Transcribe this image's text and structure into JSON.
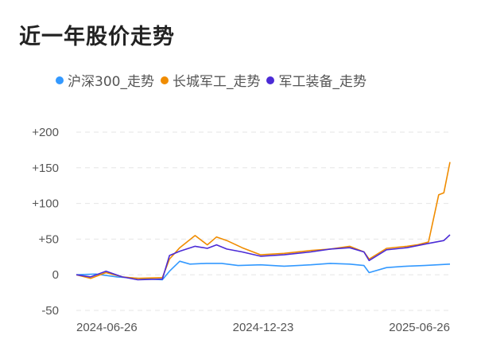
{
  "title": "近一年股价走势",
  "colors": {
    "hs300": "#3399ff",
    "ccgj": "#f08c00",
    "jgzb": "#4b2bd6",
    "grid": "#e6e6e6"
  },
  "chart_data": {
    "type": "line",
    "title": "近一年股价走势",
    "x_ticks": [
      "2024-06-26",
      "2024-12-23",
      "2025-06-26"
    ],
    "y_ticks": [
      "+200",
      "+150",
      "+100",
      "+50",
      "0",
      "-50"
    ],
    "y_tick_values": [
      200,
      150,
      100,
      50,
      0,
      -50
    ],
    "ylim": [
      -50,
      200
    ],
    "xlim": [
      "2024-06-26",
      "2025-06-26"
    ],
    "grid": true,
    "legend_position": "top",
    "series": [
      {
        "name": "沪深300_走势",
        "color": "#3399ff",
        "x": [
          "2024-06-26",
          "2024-07-15",
          "2024-08-05",
          "2024-08-25",
          "2024-09-18",
          "2024-09-25",
          "2024-10-05",
          "2024-10-15",
          "2024-10-31",
          "2024-11-15",
          "2024-12-01",
          "2024-12-23",
          "2025-01-15",
          "2025-02-10",
          "2025-03-01",
          "2025-03-20",
          "2025-04-03",
          "2025-04-08",
          "2025-04-25",
          "2025-05-15",
          "2025-06-01",
          "2025-06-26"
        ],
        "values": [
          0,
          1,
          -3,
          -5,
          -7,
          5,
          19,
          15,
          16,
          16,
          13,
          14,
          12,
          14,
          16,
          15,
          13,
          3,
          10,
          12,
          13,
          15
        ]
      },
      {
        "name": "长城军工_走势",
        "color": "#f08c00",
        "x": [
          "2024-06-26",
          "2024-07-10",
          "2024-07-25",
          "2024-08-10",
          "2024-08-25",
          "2024-09-18",
          "2024-09-25",
          "2024-10-05",
          "2024-10-20",
          "2024-11-01",
          "2024-11-10",
          "2024-11-20",
          "2024-12-05",
          "2024-12-23",
          "2025-01-15",
          "2025-02-10",
          "2025-03-01",
          "2025-03-20",
          "2025-04-03",
          "2025-04-08",
          "2025-04-25",
          "2025-05-15",
          "2025-05-25",
          "2025-06-05",
          "2025-06-15",
          "2025-06-20",
          "2025-06-26"
        ],
        "values": [
          0,
          -5,
          3,
          -3,
          -5,
          -4,
          22,
          38,
          55,
          42,
          53,
          48,
          38,
          28,
          30,
          34,
          36,
          40,
          32,
          22,
          37,
          40,
          42,
          46,
          112,
          115,
          158
        ]
      },
      {
        "name": "军工装备_走势",
        "color": "#4b2bd6",
        "x": [
          "2024-06-26",
          "2024-07-10",
          "2024-07-25",
          "2024-08-10",
          "2024-08-25",
          "2024-09-18",
          "2024-09-25",
          "2024-10-05",
          "2024-10-20",
          "2024-11-01",
          "2024-11-10",
          "2024-11-20",
          "2024-12-05",
          "2024-12-23",
          "2025-01-15",
          "2025-02-10",
          "2025-03-01",
          "2025-03-20",
          "2025-04-03",
          "2025-04-08",
          "2025-04-25",
          "2025-05-15",
          "2025-06-05",
          "2025-06-20",
          "2025-06-26"
        ],
        "values": [
          0,
          -3,
          5,
          -3,
          -7,
          -6,
          27,
          33,
          40,
          37,
          42,
          36,
          32,
          26,
          28,
          32,
          36,
          38,
          32,
          20,
          35,
          38,
          44,
          48,
          56
        ]
      }
    ]
  }
}
